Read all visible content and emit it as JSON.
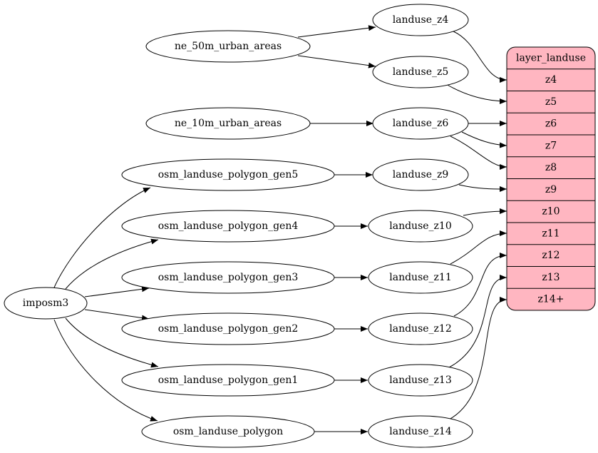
{
  "nodes": {
    "imposm3": "imposm3",
    "ne_50m": "ne_50m_urban_areas",
    "ne_10m": "ne_10m_urban_areas",
    "gen5": "osm_landuse_polygon_gen5",
    "gen4": "osm_landuse_polygon_gen4",
    "gen3": "osm_landuse_polygon_gen3",
    "gen2": "osm_landuse_polygon_gen2",
    "gen1": "osm_landuse_polygon_gen1",
    "polygon": "osm_landuse_polygon",
    "z4": "landuse_z4",
    "z5": "landuse_z5",
    "z6": "landuse_z6",
    "z9": "landuse_z9",
    "z10": "landuse_z10",
    "z11": "landuse_z11",
    "z12": "landuse_z12",
    "z13": "landuse_z13",
    "z14": "landuse_z14"
  },
  "layer": {
    "title": "layer_landuse",
    "fields": [
      "z4",
      "z5",
      "z6",
      "z7",
      "z8",
      "z9",
      "z10",
      "z11",
      "z12",
      "z13",
      "z14+"
    ],
    "fill_color": "#ffb6c1"
  }
}
